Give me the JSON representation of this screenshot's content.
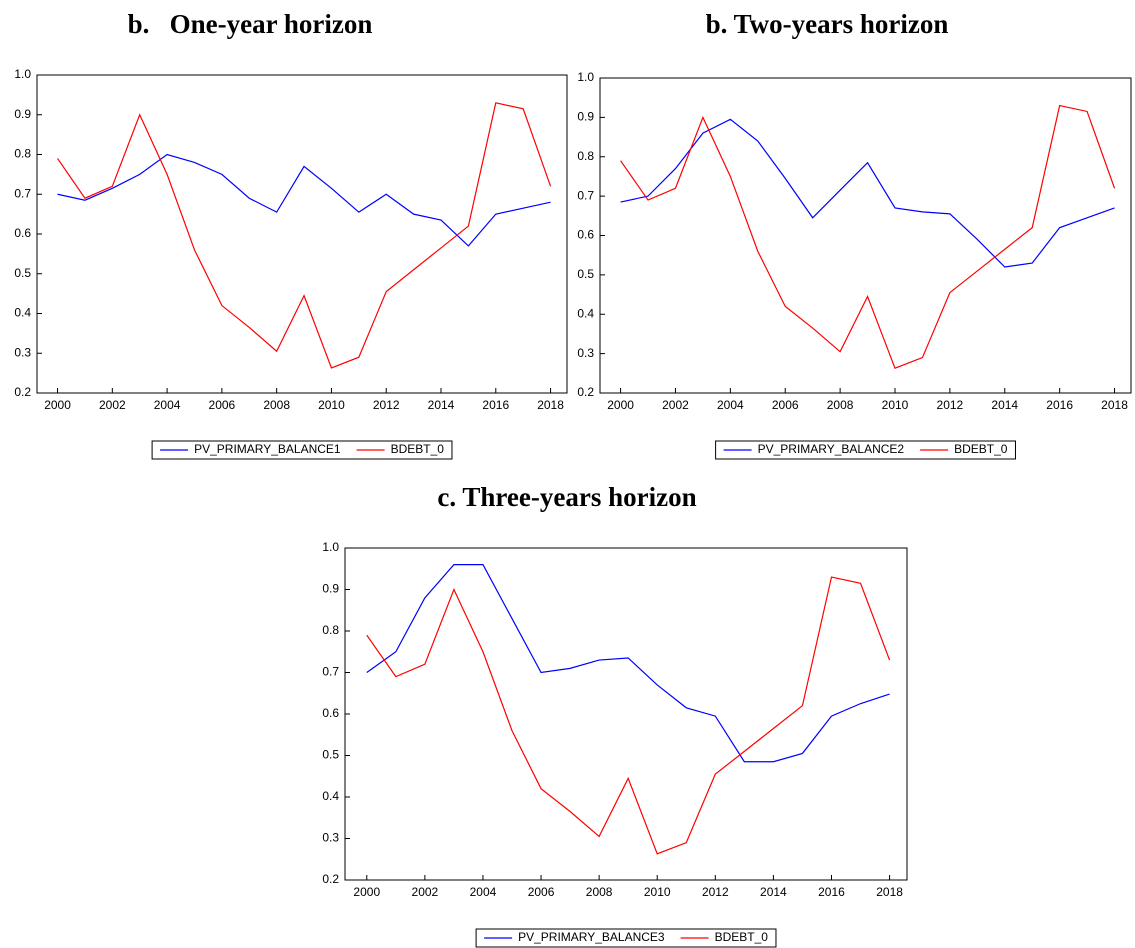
{
  "chart_data": [
    {
      "type": "line",
      "title": "b.   One-year horizon",
      "x": [
        2000,
        2001,
        2002,
        2003,
        2004,
        2005,
        2006,
        2007,
        2008,
        2009,
        2010,
        2011,
        2012,
        2013,
        2014,
        2015,
        2016,
        2017,
        2018
      ],
      "series": [
        {
          "name": "PV_PRIMARY_BALANCE1",
          "color": "#0000ff",
          "values": [
            0.7,
            0.685,
            0.715,
            0.75,
            0.8,
            0.78,
            0.75,
            0.69,
            0.655,
            0.77,
            0.715,
            0.655,
            0.7,
            0.65,
            0.635,
            0.57,
            0.65,
            0.665,
            0.68
          ]
        },
        {
          "name": "BDEBT_0",
          "color": "#ff0000",
          "values": [
            0.79,
            0.69,
            0.72,
            0.9,
            0.75,
            0.56,
            0.42,
            0.365,
            0.305,
            0.445,
            0.263,
            0.29,
            0.455,
            0.51,
            0.565,
            0.62,
            0.93,
            0.915,
            0.72
          ]
        }
      ],
      "xlim": [
        1999.25,
        2018.6
      ],
      "xticks": [
        2000,
        2002,
        2004,
        2006,
        2008,
        2010,
        2012,
        2014,
        2016,
        2018
      ],
      "ylim": [
        0.2,
        1.0
      ],
      "yticks": [
        0.2,
        0.3,
        0.4,
        0.5,
        0.6,
        0.7,
        0.8,
        0.9,
        {
          "value": 1.0,
          "label": "1.0"
        }
      ]
    },
    {
      "type": "line",
      "title": "b. Two-years horizon",
      "x": [
        2000,
        2001,
        2002,
        2003,
        2004,
        2005,
        2006,
        2007,
        2008,
        2009,
        2010,
        2011,
        2012,
        2013,
        2014,
        2015,
        2016,
        2017,
        2018
      ],
      "series": [
        {
          "name": "PV_PRIMARY_BALANCE2",
          "color": "#0000ff",
          "values": [
            0.685,
            0.7,
            0.77,
            0.86,
            0.895,
            0.84,
            0.745,
            0.645,
            0.715,
            0.785,
            0.67,
            0.66,
            0.655,
            0.59,
            0.52,
            0.53,
            0.62,
            0.645,
            0.67
          ]
        },
        {
          "name": "BDEBT_0",
          "color": "#ff0000",
          "values": [
            0.79,
            0.69,
            0.72,
            0.9,
            0.75,
            0.56,
            0.42,
            0.365,
            0.305,
            0.445,
            0.263,
            0.29,
            0.455,
            0.51,
            0.565,
            0.62,
            0.93,
            0.915,
            0.72
          ]
        }
      ],
      "xlim": [
        1999.25,
        2018.6
      ],
      "xticks": [
        2000,
        2002,
        2004,
        2006,
        2008,
        2010,
        2012,
        2014,
        2016,
        2018
      ],
      "ylim": [
        0.2,
        1.0
      ],
      "yticks": [
        0.2,
        0.3,
        0.4,
        0.5,
        0.6,
        0.7,
        0.8,
        0.9,
        {
          "value": 1.0,
          "label": "1.0"
        }
      ]
    },
    {
      "type": "line",
      "title": "c. Three-years horizon",
      "x": [
        2000,
        2001,
        2002,
        2003,
        2004,
        2005,
        2006,
        2007,
        2008,
        2009,
        2010,
        2011,
        2012,
        2013,
        2014,
        2015,
        2016,
        2017,
        2018
      ],
      "series": [
        {
          "name": "PV_PRIMARY_BALANCE3",
          "color": "#0000ff",
          "values": [
            0.7,
            0.75,
            0.88,
            0.96,
            0.96,
            0.83,
            0.7,
            0.71,
            0.73,
            0.735,
            0.67,
            0.615,
            0.595,
            0.485,
            0.485,
            0.505,
            0.595,
            0.625,
            0.648
          ]
        },
        {
          "name": "BDEBT_0",
          "color": "#ff0000",
          "values": [
            0.79,
            0.69,
            0.72,
            0.9,
            0.75,
            0.56,
            0.42,
            0.365,
            0.305,
            0.445,
            0.263,
            0.29,
            0.455,
            0.51,
            0.565,
            0.62,
            0.93,
            0.915,
            0.73
          ]
        }
      ],
      "xlim": [
        1999.25,
        2018.6
      ],
      "xticks": [
        2000,
        2002,
        2004,
        2006,
        2008,
        2010,
        2012,
        2014,
        2016,
        2018
      ],
      "ylim": [
        0.2,
        1.0
      ],
      "yticks": [
        0.2,
        0.3,
        0.4,
        0.5,
        0.6,
        0.7,
        0.8,
        0.9,
        {
          "value": 1.0,
          "label": "1.0"
        }
      ]
    }
  ]
}
